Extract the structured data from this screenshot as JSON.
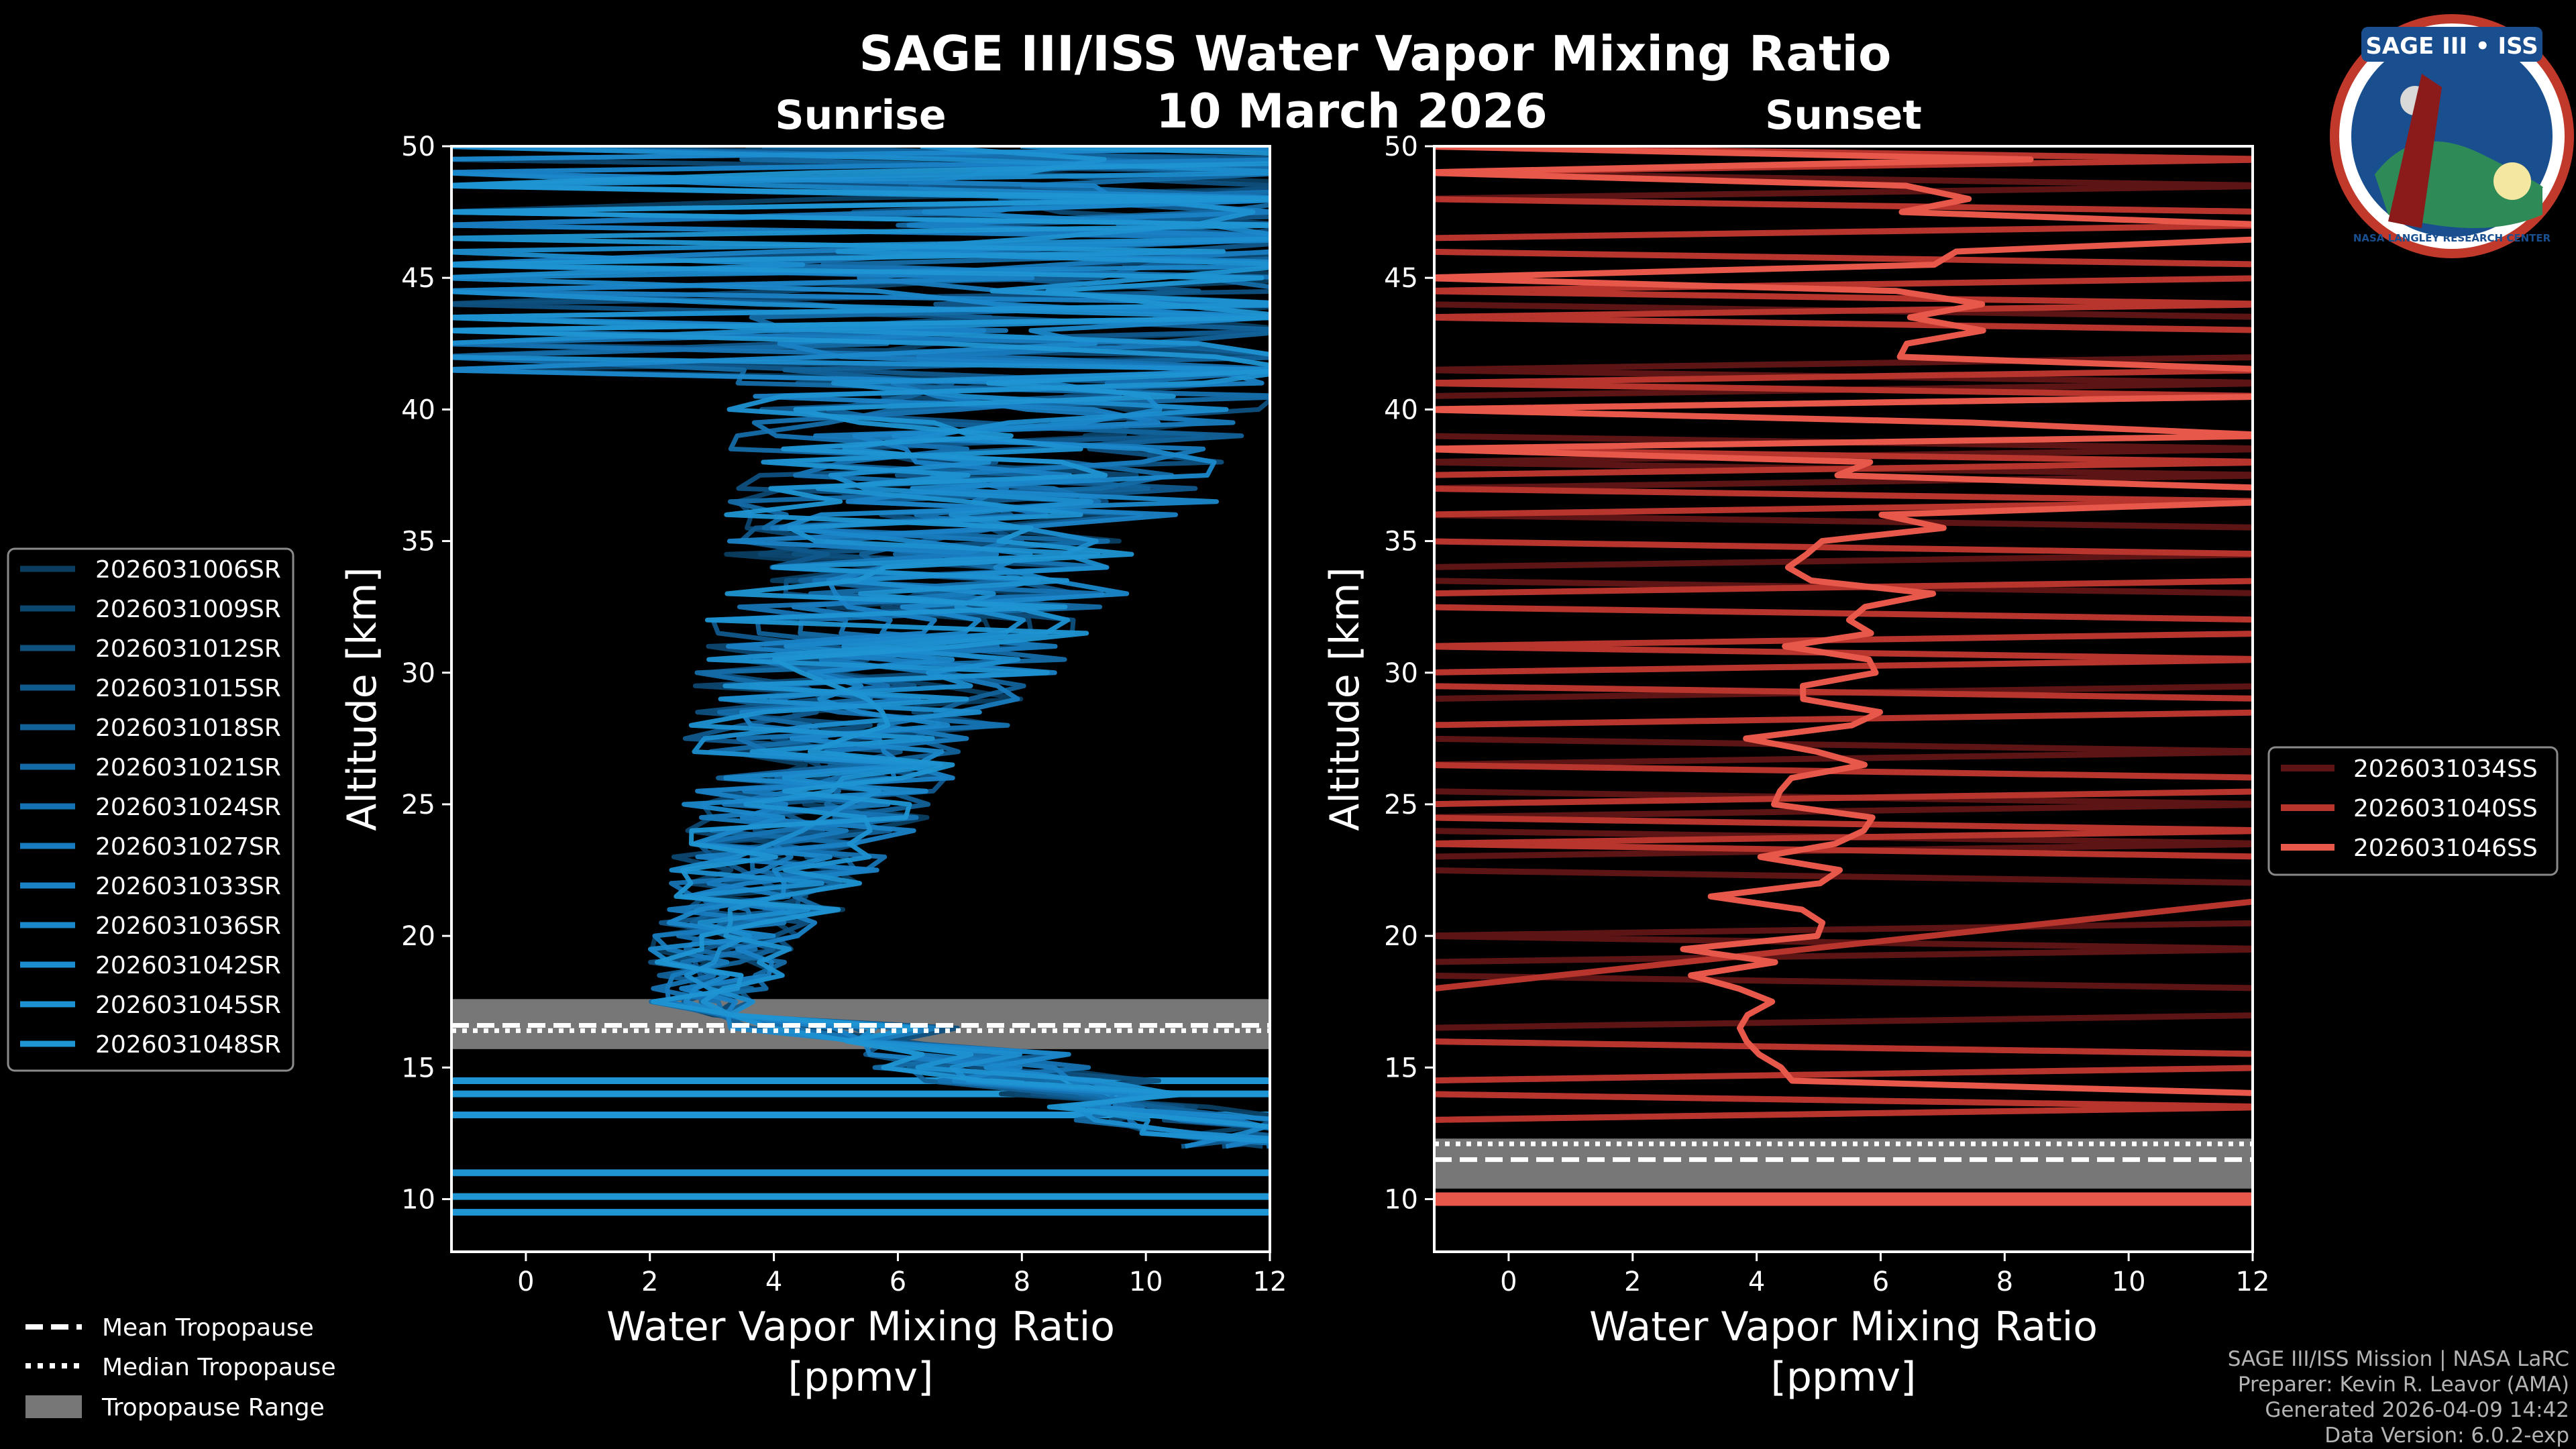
{
  "header": {
    "title": "SAGE III/ISS Water Vapor Mixing Ratio",
    "date": "10 March 2026",
    "logo_text": "SAGE III • ISS",
    "logo_ring": "NASA LANGLEY RESEARCH CENTER"
  },
  "credits": {
    "line1": "SAGE III/ISS Mission | NASA LaRC",
    "line2": "Preparer: Kevin R. Leavor (AMA)",
    "line3": "Generated 2026-04-09 14:42",
    "line4": "Data Version: 6.0.2-exp"
  },
  "colors": {
    "background": "#000000",
    "sunrise": "#1f95d3",
    "sunset_light": "#e8584a",
    "sunset_mid": "#b8352e",
    "sunset_dark": "#5c1414",
    "tropopause_band": "#777777"
  },
  "chart_data": [
    {
      "type": "line",
      "title": "Sunrise",
      "xlabel": "Water Vapor Mixing Ratio [ppmv]",
      "ylabel": "Altitude [km]",
      "xlim": [
        -1.2,
        12
      ],
      "ylim": [
        8,
        50
      ],
      "x_ticks": [
        0,
        2,
        4,
        6,
        8,
        10,
        12
      ],
      "y_ticks": [
        10,
        15,
        20,
        25,
        30,
        35,
        40,
        45,
        50
      ],
      "tropopause": {
        "mean": 16.6,
        "median": 16.4,
        "range": [
          15.7,
          17.6
        ]
      },
      "flat_low_lines": [
        9.5,
        10.1,
        11.0,
        13.2,
        14.0,
        14.5
      ],
      "series": [
        {
          "name": "2026031006SR",
          "color": "#0a3e61",
          "seed": 1
        },
        {
          "name": "2026031009SR",
          "color": "#0c4770",
          "seed": 2
        },
        {
          "name": "2026031012SR",
          "color": "#0e507e",
          "seed": 3
        },
        {
          "name": "2026031015SR",
          "color": "#10598c",
          "seed": 4
        },
        {
          "name": "2026031018SR",
          "color": "#12629a",
          "seed": 5
        },
        {
          "name": "2026031021SR",
          "color": "#146ba7",
          "seed": 6
        },
        {
          "name": "2026031024SR",
          "color": "#1673b3",
          "seed": 7
        },
        {
          "name": "2026031027SR",
          "color": "#187bbe",
          "seed": 8
        },
        {
          "name": "2026031033SR",
          "color": "#1a82c6",
          "seed": 9
        },
        {
          "name": "2026031036SR",
          "color": "#1b88cb",
          "seed": 10
        },
        {
          "name": "2026031042SR",
          "color": "#1c8dcf",
          "seed": 11
        },
        {
          "name": "2026031045SR",
          "color": "#1d91d1",
          "seed": 12
        },
        {
          "name": "2026031048SR",
          "color": "#1f95d3",
          "seed": 13
        }
      ]
    },
    {
      "type": "line",
      "title": "Sunset",
      "xlabel": "Water Vapor Mixing Ratio [ppmv]",
      "ylabel": "Altitude [km]",
      "xlim": [
        -1.2,
        12
      ],
      "ylim": [
        8,
        50
      ],
      "x_ticks": [
        0,
        2,
        4,
        6,
        8,
        10,
        12
      ],
      "y_ticks": [
        10,
        15,
        20,
        25,
        30,
        35,
        40,
        45,
        50
      ],
      "tropopause": {
        "mean": 11.5,
        "median": 12.1,
        "range": [
          10.4,
          12.3
        ]
      },
      "flat_low_lines": [
        10.0
      ],
      "series": [
        {
          "name": "2026031034SS",
          "color": "#5c1414",
          "seed": 21
        },
        {
          "name": "2026031040SS",
          "color": "#b8352e",
          "seed": 22
        },
        {
          "name": "2026031046SS",
          "color": "#e8584a",
          "seed": 23
        }
      ]
    }
  ],
  "legend_tropopause": {
    "mean": "Mean Tropopause",
    "median": "Median Tropopause",
    "range": "Tropopause Range"
  }
}
